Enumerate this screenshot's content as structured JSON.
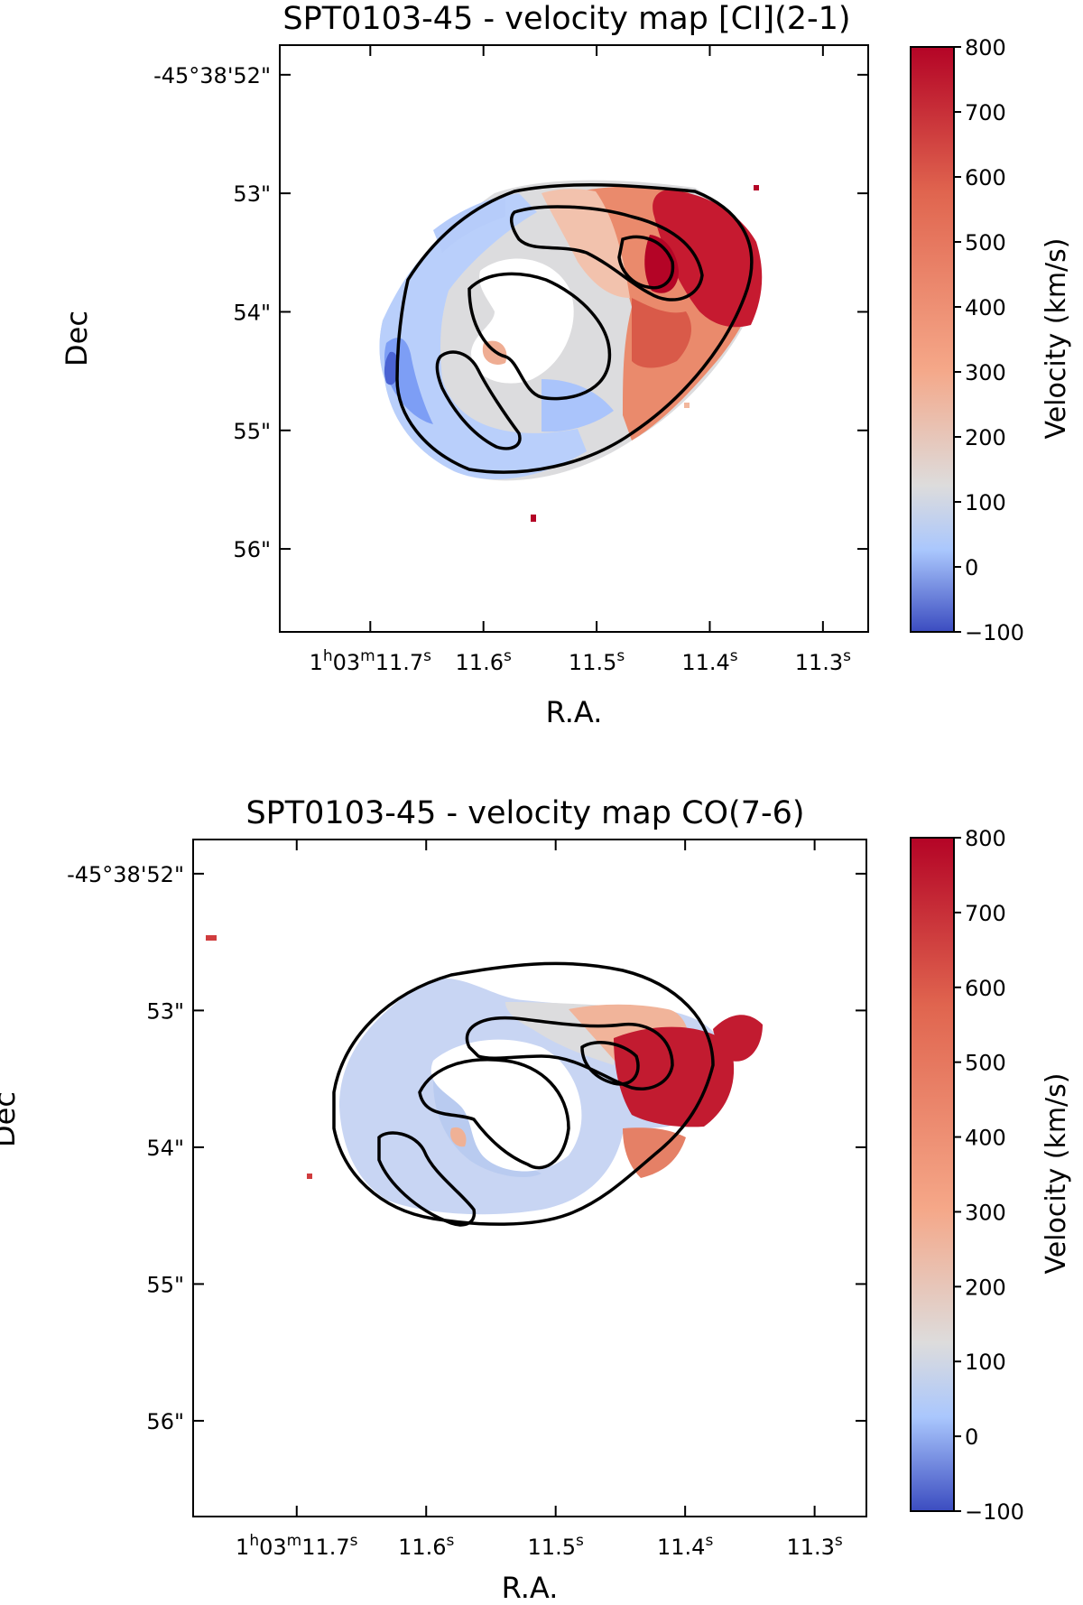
{
  "chart_data": [
    {
      "type": "heatmap",
      "title": "SPT0103-45 - velocity map [CI](2-1)",
      "xlabel": "R.A.",
      "ylabel": "Dec",
      "x_ticks": [
        {
          "label": "1h03m11.7s",
          "ra_s": 11.7
        },
        {
          "label": "11.6s",
          "ra_s": 11.6
        },
        {
          "label": "11.5s",
          "ra_s": 11.5
        },
        {
          "label": "11.4s",
          "ra_s": 11.4
        },
        {
          "label": "11.3s",
          "ra_s": 11.3
        }
      ],
      "y_ticks": [
        {
          "label": "-45°38'52\"",
          "dec_arcsec": 52
        },
        {
          "label": "53\"",
          "dec_arcsec": 53
        },
        {
          "label": "54\"",
          "dec_arcsec": 54
        },
        {
          "label": "55\"",
          "dec_arcsec": 55
        },
        {
          "label": "56\"",
          "dec_arcsec": 56
        }
      ],
      "xlim_ra_s": [
        11.78,
        11.26
      ],
      "ylim_dec_arcsec": [
        51.75,
        56.7
      ],
      "colorbar": {
        "label": "Velocity (km/s)",
        "min": -100,
        "max": 800,
        "ticks": [
          "800",
          "700",
          "600",
          "500",
          "400",
          "300",
          "200",
          "100",
          "0",
          "−100"
        ]
      },
      "colormap": [
        "#3b4cc0",
        "#aac7fd",
        "#dddcdc",
        "#f5a788",
        "#b40426"
      ]
    },
    {
      "type": "heatmap",
      "title": "SPT0103-45 - velocity map CO(7-6)",
      "xlabel": "R.A.",
      "ylabel": "Dec",
      "x_ticks": [
        {
          "label": "1h03m11.7s",
          "ra_s": 11.7
        },
        {
          "label": "11.6s",
          "ra_s": 11.6
        },
        {
          "label": "11.5s",
          "ra_s": 11.5
        },
        {
          "label": "11.4s",
          "ra_s": 11.4
        },
        {
          "label": "11.3s",
          "ra_s": 11.3
        }
      ],
      "y_ticks": [
        {
          "label": "-45°38'52\"",
          "dec_arcsec": 52
        },
        {
          "label": "53\"",
          "dec_arcsec": 53
        },
        {
          "label": "54\"",
          "dec_arcsec": 54
        },
        {
          "label": "55\"",
          "dec_arcsec": 55
        },
        {
          "label": "56\"",
          "dec_arcsec": 56
        }
      ],
      "xlim_ra_s": [
        11.78,
        11.26
      ],
      "ylim_dec_arcsec": [
        51.75,
        56.7
      ],
      "colorbar": {
        "label": "Velocity (km/s)",
        "min": -100,
        "max": 800,
        "ticks": [
          "800",
          "700",
          "600",
          "500",
          "400",
          "300",
          "200",
          "100",
          "0",
          "−100"
        ]
      },
      "colormap": [
        "#3b4cc0",
        "#aac7fd",
        "#dddcdc",
        "#f5a788",
        "#b40426"
      ]
    }
  ]
}
